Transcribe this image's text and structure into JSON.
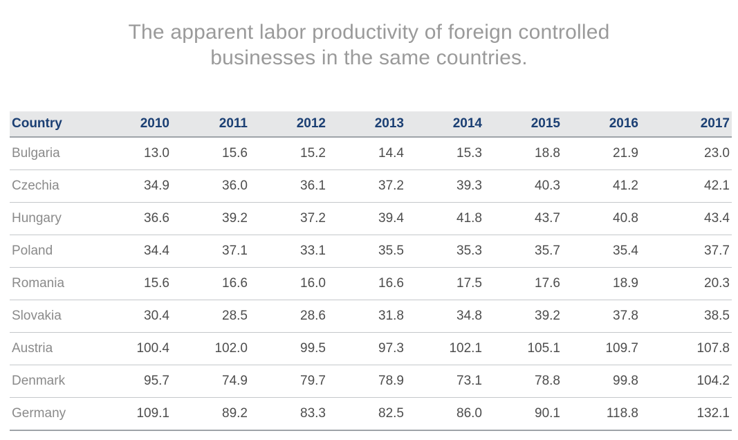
{
  "title_lines": [
    "The apparent labor productivity of foreign controlled",
    "businesses in the same countries."
  ],
  "colors": {
    "header_text": "#1b3f73",
    "header_bg": "#e6e7e8",
    "title_text": "#9a9a9a"
  },
  "chart_data": {
    "type": "table",
    "title": "The apparent labor productivity of foreign controlled businesses in the same countries.",
    "columns": [
      "Country",
      "2010",
      "2011",
      "2012",
      "2013",
      "2014",
      "2015",
      "2016",
      "2017"
    ],
    "rows": [
      [
        "Bulgaria",
        "13.0",
        "15.6",
        "15.2",
        "14.4",
        "15.3",
        "18.8",
        "21.9",
        "23.0"
      ],
      [
        "Czechia",
        "34.9",
        "36.0",
        "36.1",
        "37.2",
        "39.3",
        "40.3",
        "41.2",
        "42.1"
      ],
      [
        "Hungary",
        "36.6",
        "39.2",
        "37.2",
        "39.4",
        "41.8",
        "43.7",
        "40.8",
        "43.4"
      ],
      [
        "Poland",
        "34.4",
        "37.1",
        "33.1",
        "35.5",
        "35.3",
        "35.7",
        "35.4",
        "37.7"
      ],
      [
        "Romania",
        "15.6",
        "16.6",
        "16.0",
        "16.6",
        "17.5",
        "17.6",
        "18.9",
        "20.3"
      ],
      [
        "Slovakia",
        "30.4",
        "28.5",
        "28.6",
        "31.8",
        "34.8",
        "39.2",
        "37.8",
        "38.5"
      ],
      [
        "Austria",
        "100.4",
        "102.0",
        "99.5",
        "97.3",
        "102.1",
        "105.1",
        "109.7",
        "107.8"
      ],
      [
        "Denmark",
        "95.7",
        "74.9",
        "79.7",
        "78.9",
        "73.1",
        "78.8",
        "99.8",
        "104.2"
      ],
      [
        "Germany",
        "109.1",
        "89.2",
        "83.3",
        "82.5",
        "86.0",
        "90.1",
        "118.8",
        "132.1"
      ]
    ]
  }
}
